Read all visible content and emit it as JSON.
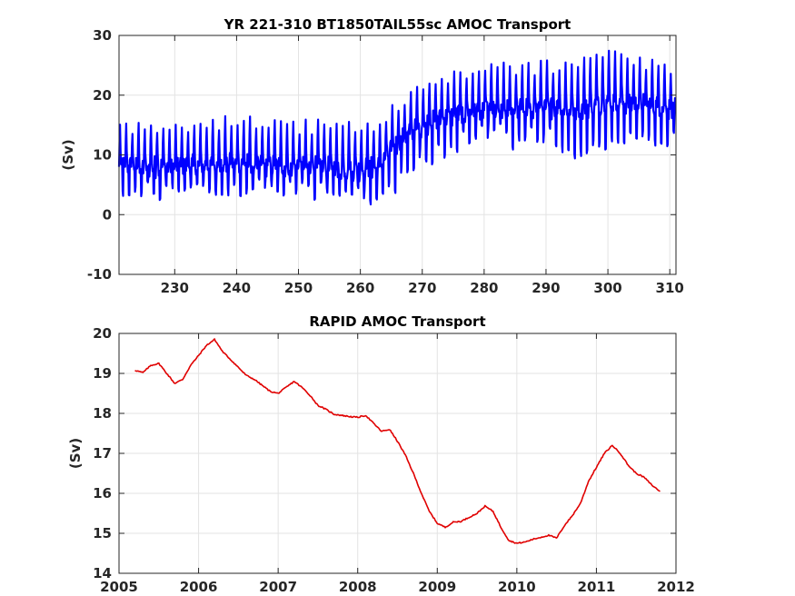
{
  "chart_data": [
    {
      "type": "line",
      "title": "YR 221-310 BT1850TAIL55sc AMOC Transport",
      "xlabel": "",
      "ylabel": "(Sv)",
      "xlim": [
        221,
        311
      ],
      "ylim": [
        -10,
        30
      ],
      "xticks": [
        230,
        240,
        250,
        260,
        270,
        280,
        290,
        300,
        310
      ],
      "yticks": [
        -10,
        0,
        10,
        20,
        30
      ],
      "grid": true,
      "series": [
        {
          "color": "#0000ff",
          "description_free": true,
          "x_start": 221,
          "x_end": 311,
          "envelope_x": [
            221,
            230,
            240,
            250,
            260,
            263,
            266,
            270,
            275,
            280,
            285,
            290,
            295,
            300,
            305,
            311
          ],
          "envelope_max": [
            15.5,
            15,
            16.5,
            15.5,
            15.5,
            15,
            19,
            22,
            24,
            25,
            25,
            25.5,
            27,
            27.5,
            26,
            25
          ],
          "envelope_min": [
            3.5,
            3,
            3.5,
            3.5,
            3.5,
            1,
            5,
            9,
            11,
            13,
            12,
            13,
            8,
            12,
            12,
            12
          ],
          "envelope_mean": [
            8,
            8,
            8.5,
            8,
            7.5,
            8,
            12,
            15,
            16.5,
            17.5,
            17.5,
            18,
            17.5,
            19,
            18.5,
            17.5
          ]
        }
      ]
    },
    {
      "type": "line",
      "title": "RAPID AMOC Transport",
      "xlabel": "",
      "ylabel": "(Sv)",
      "xlim": [
        2005,
        2012
      ],
      "ylim": [
        14,
        20
      ],
      "xticks": [
        2005,
        2006,
        2007,
        2008,
        2009,
        2010,
        2011,
        2012
      ],
      "yticks": [
        14,
        15,
        16,
        17,
        18,
        19,
        20
      ],
      "grid": true,
      "series": [
        {
          "color": "#e00000",
          "x": [
            2005.2,
            2005.3,
            2005.4,
            2005.5,
            2005.6,
            2005.7,
            2005.8,
            2005.9,
            2006.0,
            2006.1,
            2006.2,
            2006.3,
            2006.4,
            2006.5,
            2006.6,
            2006.7,
            2006.8,
            2006.9,
            2007.0,
            2007.1,
            2007.2,
            2007.3,
            2007.4,
            2007.5,
            2007.6,
            2007.7,
            2007.8,
            2007.9,
            2008.0,
            2008.1,
            2008.2,
            2008.3,
            2008.4,
            2008.5,
            2008.6,
            2008.7,
            2008.8,
            2008.9,
            2009.0,
            2009.1,
            2009.2,
            2009.3,
            2009.4,
            2009.5,
            2009.6,
            2009.7,
            2009.8,
            2009.9,
            2010.0,
            2010.1,
            2010.2,
            2010.3,
            2010.4,
            2010.5,
            2010.6,
            2010.7,
            2010.8,
            2010.9,
            2011.0,
            2011.1,
            2011.2,
            2011.3,
            2011.4,
            2011.5,
            2011.6,
            2011.7,
            2011.8
          ],
          "y": [
            19.08,
            19.02,
            19.2,
            19.25,
            19.0,
            18.75,
            18.85,
            19.2,
            19.45,
            19.7,
            19.85,
            19.55,
            19.35,
            19.15,
            18.95,
            18.85,
            18.7,
            18.55,
            18.5,
            18.65,
            18.8,
            18.65,
            18.45,
            18.2,
            18.1,
            17.98,
            17.95,
            17.92,
            17.9,
            17.95,
            17.75,
            17.55,
            17.6,
            17.3,
            16.95,
            16.5,
            16.0,
            15.55,
            15.25,
            15.15,
            15.28,
            15.3,
            15.4,
            15.5,
            15.68,
            15.55,
            15.15,
            14.82,
            14.75,
            14.78,
            14.85,
            14.9,
            14.95,
            14.88,
            15.2,
            15.45,
            15.75,
            16.3,
            16.65,
            17.0,
            17.2,
            17.0,
            16.7,
            16.5,
            16.4,
            16.2,
            16.05
          ]
        }
      ]
    }
  ]
}
